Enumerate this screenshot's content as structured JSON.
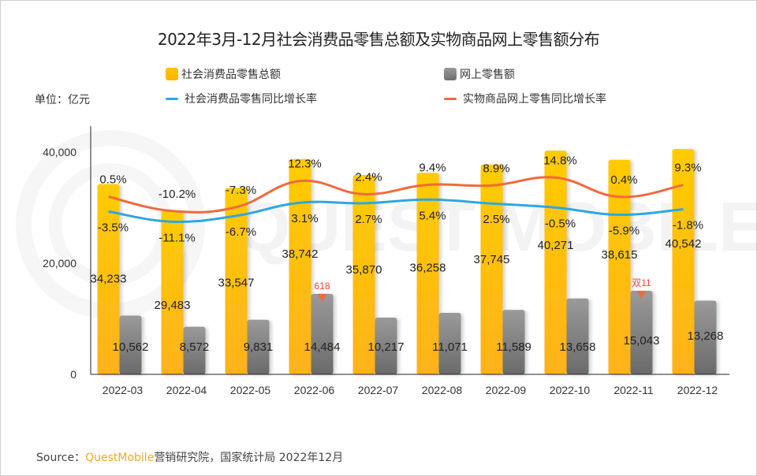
{
  "title": "2022年3月-12月社会消费品零售总额及实物商品网上零售额分布",
  "unit_label": "单位：亿元",
  "legend": [
    {
      "label": "社会消费品零售总额",
      "kind": "bar",
      "color": "#ffc000"
    },
    {
      "label": "网上零售额",
      "kind": "bar",
      "color": "#808080"
    },
    {
      "label": "社会消费品零售同比增长率",
      "kind": "line",
      "color": "#2ea7e0"
    },
    {
      "label": "实物商品网上零售同比增长率",
      "kind": "line",
      "color": "#ef6a3f"
    }
  ],
  "source": {
    "prefix": "Source：",
    "brand": "QuestMobile",
    "rest": "营销研究院，国家统计局 2022年12月"
  },
  "watermark": "QUEST MOBILE",
  "chart_data": {
    "type": "bar",
    "title": "2022年3月-12月社会消费品零售总额及实物商品网上零售额分布",
    "xlabel": "",
    "ylabel": "亿元",
    "ylim": [
      0,
      40000
    ],
    "yticks": [
      0,
      20000,
      40000
    ],
    "ytick_labels": [
      "0",
      "20,000",
      "40,000"
    ],
    "grid": false,
    "legend_position": "top",
    "categories": [
      "2022-03",
      "2022-04",
      "2022-05",
      "2022-06",
      "2022-07",
      "2022-08",
      "2022-09",
      "2022-10",
      "2022-11",
      "2022-12"
    ],
    "series": [
      {
        "name": "社会消费品零售总额",
        "type": "bar",
        "color": "#ffc000",
        "values": [
          34233,
          29483,
          33547,
          38742,
          35870,
          36258,
          37745,
          40271,
          38615,
          40542
        ],
        "labels": [
          "34,233",
          "29,483",
          "33,547",
          "38,742",
          "35,870",
          "36,258",
          "37,745",
          "40,271",
          "38,615",
          "40,542"
        ]
      },
      {
        "name": "网上零售额",
        "type": "bar",
        "color": "#808080",
        "values": [
          10562,
          8572,
          9831,
          14484,
          10217,
          11071,
          11589,
          13658,
          15043,
          13268
        ],
        "labels": [
          "10,562",
          "8,572",
          "9,831",
          "14,484",
          "10,217",
          "11,071",
          "11,589",
          "13,658",
          "15,043",
          "13,268"
        ]
      },
      {
        "name": "社会消费品零售同比增长率",
        "type": "line",
        "color": "#2ea7e0",
        "unit": "%",
        "values": [
          -3.5,
          -11.1,
          -6.7,
          3.1,
          2.7,
          5.4,
          2.5,
          -0.5,
          -5.9,
          -1.8
        ],
        "labels": [
          "-3.5%",
          "-11.1%",
          "-6.7%",
          "3.1%",
          "2.7%",
          "5.4%",
          "2.5%",
          "-0.5%",
          "-5.9%",
          "-1.8%"
        ]
      },
      {
        "name": "实物商品网上零售同比增长率",
        "type": "line",
        "color": "#ef6a3f",
        "unit": "%",
        "values": [
          0.5,
          -10.2,
          -7.3,
          12.3,
          2.4,
          9.4,
          8.9,
          14.8,
          0.4,
          9.3
        ],
        "labels": [
          "0.5%",
          "-10.2%",
          "-7.3%",
          "12.3%",
          "2.4%",
          "9.4%",
          "8.9%",
          "14.8%",
          "0.4%",
          "9.3%"
        ]
      }
    ],
    "annotations": [
      {
        "category": "2022-06",
        "series": "网上零售额",
        "text": "618",
        "color": "#ff3b3b"
      },
      {
        "category": "2022-11",
        "series": "网上零售额",
        "text": "双11",
        "color": "#ff3b3b"
      }
    ]
  }
}
